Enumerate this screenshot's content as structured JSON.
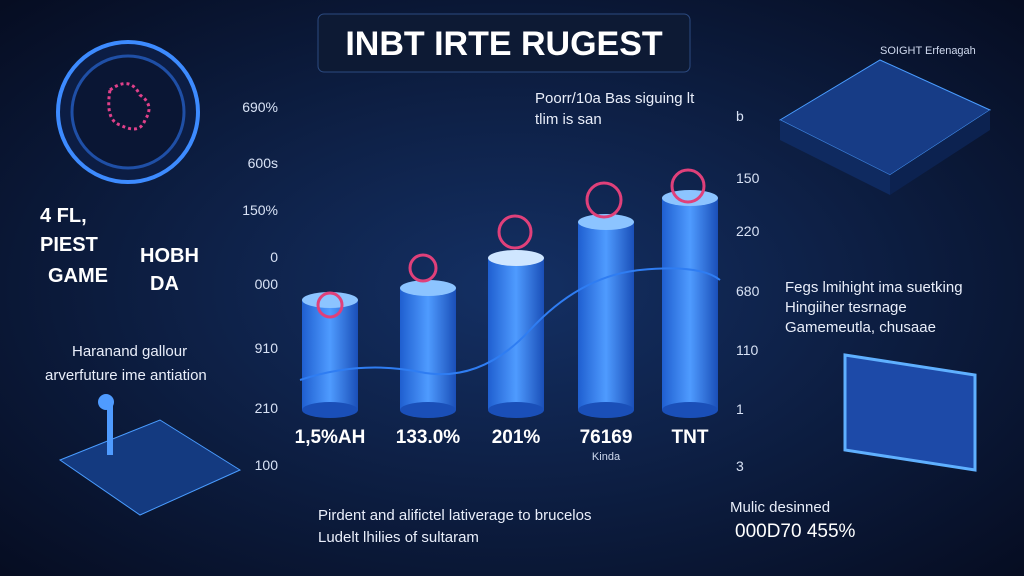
{
  "title": "INBT IRTE RUGEST",
  "left_axis": [
    "690%",
    "600s",
    "150%",
    "0",
    "000",
    "910",
    "210",
    "100"
  ],
  "right_axis": [
    "b",
    "150",
    "220",
    "680",
    "110",
    "1",
    "3"
  ],
  "bar_labels": [
    "1,5%AH",
    "133.0%",
    "201%",
    "76169",
    "TNT"
  ],
  "bar_sublabel": "Kinda",
  "top_note": [
    "Poorr/10a Bas siguing lt",
    "tlim is san"
  ],
  "top_right_note": "SOIGHT Erfenagah",
  "left_heading": [
    "4 FL,",
    "PIEST",
    "GAME",
    "HOBH",
    "DA"
  ],
  "left_note": [
    "Haranand gallour",
    "arverfuture ime antiation"
  ],
  "right_note": [
    "Fegs lmihight ima suetking",
    "Hingiiher tesrnage",
    "Gamemeutla, chusaae"
  ],
  "bottom_note": [
    "Pirdent and alifictel lativerage to brucelos",
    "Ludelt lhilies of sultaram"
  ],
  "bottom_right_note": [
    "Mulic desinned",
    "000D70 455%"
  ]
}
